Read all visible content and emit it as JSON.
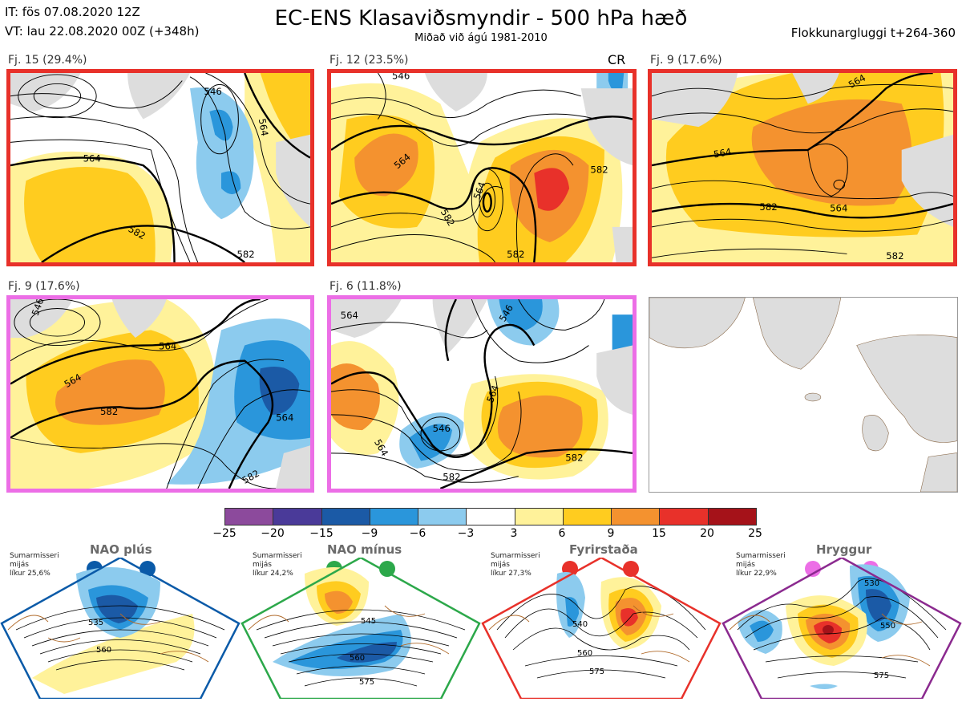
{
  "header": {
    "it_line": "IT: fös 07.08.2020 12Z",
    "vt_line": "VT: lau 22.08.2020 00Z  (+348h)",
    "title": "EC-ENS Klasaviðsmyndir - 500 hPa hæð",
    "subtitle": "Miðað við ágú 1981-2010",
    "window": "Flokkunargluggi t+264-360"
  },
  "panels": [
    {
      "label": "Fj. 15 (29.4%)",
      "border": "#e8312a",
      "contours": [
        "546",
        "564",
        "564",
        "582",
        "582"
      ]
    },
    {
      "label": "Fj. 12 (23.5%)",
      "border": "#e8312a",
      "badge": "CR",
      "contours": [
        "546",
        "564",
        "564",
        "582",
        "582",
        "582"
      ]
    },
    {
      "label": "Fj. 9 (17.6%)",
      "border": "#e8312a",
      "contours": [
        "564",
        "564",
        "582",
        "564",
        "582"
      ]
    },
    {
      "label": "Fj. 9 (17.6%)",
      "border": "#ec6ee6",
      "contours": [
        "546",
        "564",
        "564",
        "582",
        "564",
        "582"
      ]
    },
    {
      "label": "Fj. 6 (11.8%)",
      "border": "#ec6ee6",
      "contours": [
        "564",
        "546",
        "564",
        "564",
        "546",
        "582",
        "582"
      ]
    }
  ],
  "colorbar": {
    "ticks": [
      "−25",
      "−20",
      "−15",
      "−9",
      "−6",
      "−3",
      "3",
      "6",
      "9",
      "15",
      "20",
      "25"
    ],
    "colors": [
      "#8c4a9c",
      "#4a3a99",
      "#1b5aa6",
      "#2a96db",
      "#8ccbee",
      "#ffffff",
      "#fff29a",
      "#ffcc1f",
      "#f4922f",
      "#e8312a",
      "#a51219"
    ]
  },
  "regimes": [
    {
      "title": "NAO plús",
      "info": [
        "Sumarmisseri",
        "mijás",
        "líkur 25,6%"
      ],
      "color": "#0a5aa8",
      "dot": "#0a5aa8",
      "contours": [
        "535",
        "560"
      ]
    },
    {
      "title": "NAO mínus",
      "info": [
        "Sumarmisseri",
        "mijás",
        "líkur 24,2%"
      ],
      "color": "#2ca84a",
      "dot": "#2ca84a",
      "contours": [
        "545",
        "560",
        "575"
      ]
    },
    {
      "title": "Fyrirstaða",
      "info": [
        "Sumarmisseri",
        "mijás",
        "líkur 27,3%"
      ],
      "color": "#e8312a",
      "dot": "#e8312a",
      "contours": [
        "540",
        "560",
        "575"
      ]
    },
    {
      "title": "Hryggur",
      "info": [
        "Sumarmisseri",
        "mijás",
        "líkur 22,9%"
      ],
      "color": "#8b2a8f",
      "dot": "#ec6ee6",
      "contours": [
        "530",
        "550",
        "575"
      ]
    }
  ]
}
